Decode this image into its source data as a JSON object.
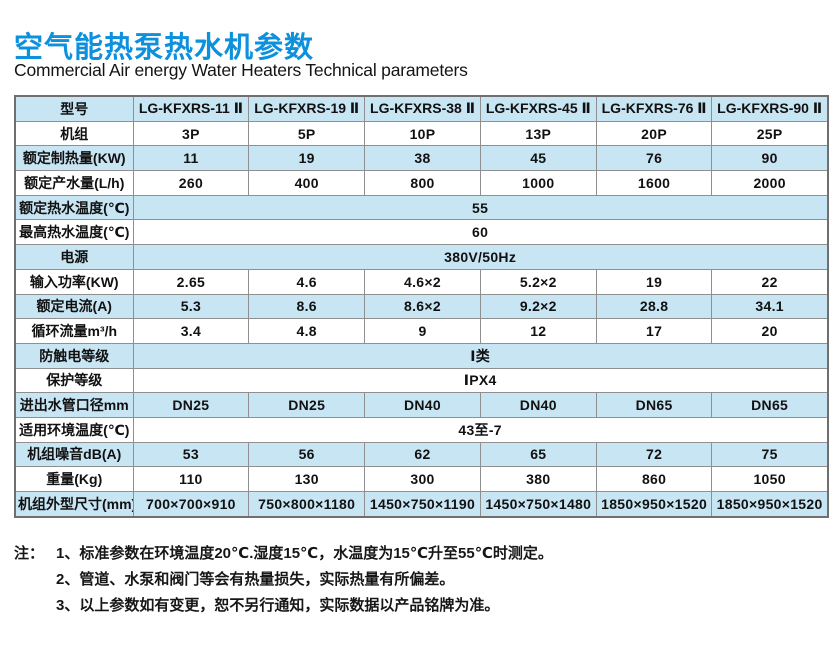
{
  "page": {
    "title": "空气能热泵热水机参数",
    "subtitle": "Commercial Air energy Water Heaters  Technical parameters"
  },
  "colors": {
    "title_blue": "#0e91dc",
    "row_blue": "#c8e5f3",
    "row_white": "#ffffff",
    "grid_gray": "#8f8f8f",
    "text": "#141414"
  },
  "table": {
    "header": {
      "label": "型号",
      "models": [
        "LG-KFXRS-11 Ⅱ",
        "LG-KFXRS-19 Ⅱ",
        "LG-KFXRS-38 Ⅱ",
        "LG-KFXRS-45 Ⅱ",
        "LG-KFXRS-76 Ⅱ",
        "LG-KFXRS-90 Ⅱ"
      ]
    },
    "rows": [
      {
        "label": "机组",
        "values": [
          "3P",
          "5P",
          "10P",
          "13P",
          "20P",
          "25P"
        ]
      },
      {
        "label": "额定制热量(KW)",
        "values": [
          "11",
          "19",
          "38",
          "45",
          "76",
          "90"
        ]
      },
      {
        "label": "额定产水量(L/h)",
        "values": [
          "260",
          "400",
          "800",
          "1000",
          "1600",
          "2000"
        ]
      },
      {
        "label": "额定热水温度(℃)",
        "value": "55"
      },
      {
        "label": "最高热水温度(℃)",
        "value": "60"
      },
      {
        "label": "电源",
        "value": "380V/50Hz"
      },
      {
        "label": "输入功率(KW)",
        "values": [
          "2.65",
          "4.6",
          "4.6×2",
          "5.2×2",
          "19",
          "22"
        ]
      },
      {
        "label": "额定电流(A)",
        "values": [
          "5.3",
          "8.6",
          "8.6×2",
          "9.2×2",
          "28.8",
          "34.1"
        ]
      },
      {
        "label": "循环流量m³/h",
        "values": [
          "3.4",
          "4.8",
          "9",
          "12",
          "17",
          "20"
        ]
      },
      {
        "label": "防触电等级",
        "value": "Ⅰ类"
      },
      {
        "label": "保护等级",
        "value": "ⅠPX4"
      },
      {
        "label": "进出水管口径mm",
        "values": [
          "DN25",
          "DN25",
          "DN40",
          "DN40",
          "DN65",
          "DN65"
        ]
      },
      {
        "label": "适用环境温度(℃)",
        "value": "43至-7"
      },
      {
        "label": "机组噪音dB(A)",
        "values": [
          "53",
          "56",
          "62",
          "65",
          "72",
          "75"
        ]
      },
      {
        "label": "重量(Kg)",
        "values": [
          "110",
          "130",
          "300",
          "380",
          "860",
          "1050"
        ]
      },
      {
        "label": "机组外型尺寸(mm)",
        "values": [
          "700×700×910",
          "750×800×1180",
          "1450×750×1190",
          "1450×750×1480",
          "1850×950×1520",
          "1850×950×1520"
        ]
      }
    ]
  },
  "notes": {
    "prefix": "注：",
    "items": [
      "1、标准参数在环境温度20℃.湿度15℃，水温度为15℃升至55℃时测定。",
      "2、管道、水泵和阀门等会有热量损失，实际热量有所偏差。",
      "3、以上参数如有变更，恕不另行通知，实际数据以产品铭牌为准。"
    ]
  }
}
